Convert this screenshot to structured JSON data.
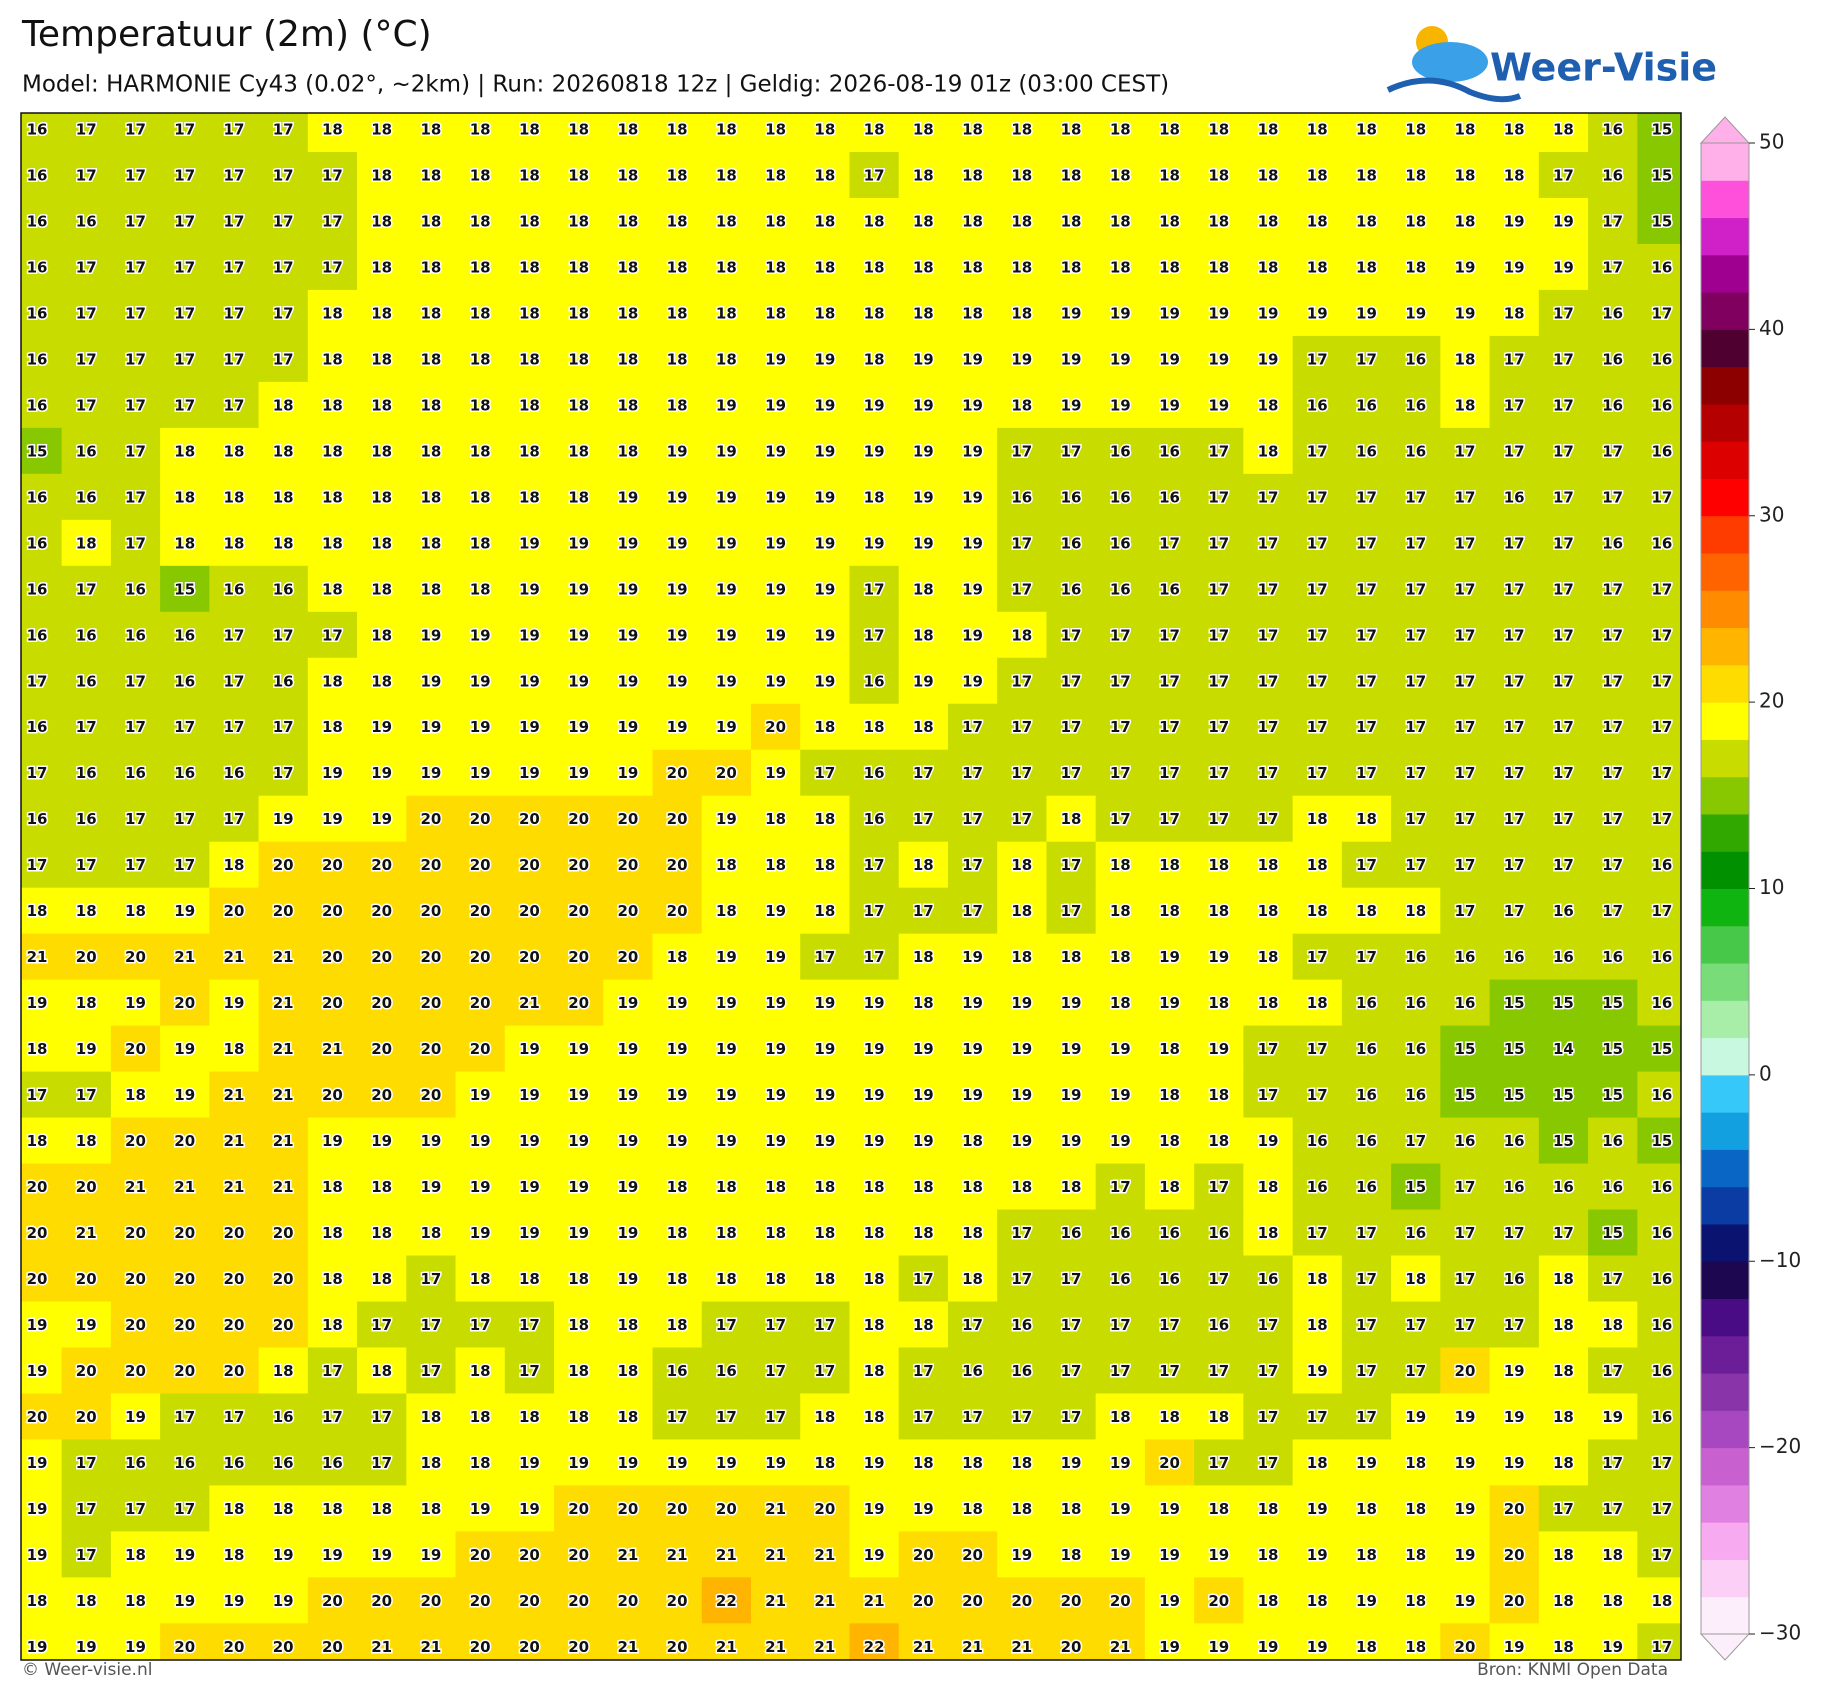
{
  "header": {
    "title": "Temperatuur (2m) (°C)",
    "subtitle": "Model: HARMONIE Cy43 (0.02°, ~2km)  |  Run: 20260818 12z  |  Geldig: 2026-08-19 01z (03:00 CEST)",
    "logo": "Weer-Visie"
  },
  "map": {
    "values": [
      [
        16,
        17,
        17,
        17,
        17,
        17,
        18,
        18,
        18,
        18,
        18,
        18,
        18,
        18,
        18,
        18,
        18,
        18,
        18,
        18,
        18,
        18,
        18,
        18,
        18,
        18,
        18,
        18,
        18,
        18,
        18,
        18,
        16,
        15
      ],
      [
        16,
        17,
        17,
        17,
        17,
        17,
        17,
        18,
        18,
        18,
        18,
        18,
        18,
        18,
        18,
        18,
        18,
        17,
        18,
        18,
        18,
        18,
        18,
        18,
        18,
        18,
        18,
        18,
        18,
        18,
        18,
        17,
        16,
        15
      ],
      [
        16,
        16,
        17,
        17,
        17,
        17,
        17,
        18,
        18,
        18,
        18,
        18,
        18,
        18,
        18,
        18,
        18,
        18,
        18,
        18,
        18,
        18,
        18,
        18,
        18,
        18,
        18,
        18,
        18,
        18,
        19,
        19,
        17,
        15
      ],
      [
        16,
        17,
        17,
        17,
        17,
        17,
        17,
        18,
        18,
        18,
        18,
        18,
        18,
        18,
        18,
        18,
        18,
        18,
        18,
        18,
        18,
        18,
        18,
        18,
        18,
        18,
        18,
        18,
        18,
        19,
        19,
        19,
        17,
        16
      ],
      [
        16,
        17,
        17,
        17,
        17,
        17,
        18,
        18,
        18,
        18,
        18,
        18,
        18,
        18,
        18,
        18,
        18,
        18,
        18,
        18,
        18,
        19,
        19,
        19,
        19,
        19,
        19,
        19,
        19,
        19,
        18,
        17,
        16,
        17
      ],
      [
        16,
        17,
        17,
        17,
        17,
        17,
        18,
        18,
        18,
        18,
        18,
        18,
        18,
        18,
        18,
        19,
        19,
        18,
        19,
        19,
        19,
        19,
        19,
        19,
        19,
        19,
        17,
        17,
        16,
        18,
        17,
        17,
        16,
        16
      ],
      [
        16,
        17,
        17,
        17,
        17,
        18,
        18,
        18,
        18,
        18,
        18,
        18,
        18,
        18,
        19,
        19,
        19,
        19,
        19,
        19,
        18,
        19,
        19,
        19,
        19,
        18,
        16,
        16,
        16,
        18,
        17,
        17,
        16,
        16
      ],
      [
        15,
        16,
        17,
        18,
        18,
        18,
        18,
        18,
        18,
        18,
        18,
        18,
        18,
        19,
        19,
        19,
        19,
        19,
        19,
        19,
        17,
        17,
        16,
        16,
        17,
        18,
        17,
        16,
        16,
        17,
        17,
        17,
        17,
        16
      ],
      [
        16,
        16,
        17,
        18,
        18,
        18,
        18,
        18,
        18,
        18,
        18,
        18,
        19,
        19,
        19,
        19,
        19,
        18,
        19,
        19,
        16,
        16,
        16,
        16,
        17,
        17,
        17,
        17,
        17,
        17,
        16,
        17,
        17,
        17
      ],
      [
        16,
        18,
        17,
        18,
        18,
        18,
        18,
        18,
        18,
        18,
        19,
        19,
        19,
        19,
        19,
        19,
        19,
        19,
        19,
        19,
        17,
        16,
        16,
        17,
        17,
        17,
        17,
        17,
        17,
        17,
        17,
        17,
        16,
        16
      ],
      [
        16,
        17,
        16,
        15,
        16,
        16,
        18,
        18,
        18,
        18,
        19,
        19,
        19,
        19,
        19,
        19,
        19,
        17,
        18,
        19,
        17,
        16,
        16,
        16,
        17,
        17,
        17,
        17,
        17,
        17,
        17,
        17,
        17,
        17
      ],
      [
        16,
        16,
        16,
        16,
        17,
        17,
        17,
        18,
        19,
        19,
        19,
        19,
        19,
        19,
        19,
        19,
        19,
        17,
        18,
        19,
        18,
        17,
        17,
        17,
        17,
        17,
        17,
        17,
        17,
        17,
        17,
        17,
        17,
        17
      ],
      [
        17,
        16,
        17,
        16,
        17,
        16,
        18,
        18,
        19,
        19,
        19,
        19,
        19,
        19,
        19,
        19,
        19,
        16,
        19,
        19,
        17,
        17,
        17,
        17,
        17,
        17,
        17,
        17,
        17,
        17,
        17,
        17,
        17,
        17
      ],
      [
        16,
        17,
        17,
        17,
        17,
        17,
        18,
        19,
        19,
        19,
        19,
        19,
        19,
        19,
        19,
        20,
        18,
        18,
        18,
        17,
        17,
        17,
        17,
        17,
        17,
        17,
        17,
        17,
        17,
        17,
        17,
        17,
        17,
        17
      ],
      [
        17,
        16,
        16,
        16,
        16,
        17,
        19,
        19,
        19,
        19,
        19,
        19,
        19,
        20,
        20,
        19,
        17,
        16,
        17,
        17,
        17,
        17,
        17,
        17,
        17,
        17,
        17,
        17,
        17,
        17,
        17,
        17,
        17,
        17
      ],
      [
        16,
        16,
        17,
        17,
        17,
        19,
        19,
        19,
        20,
        20,
        20,
        20,
        20,
        20,
        19,
        18,
        18,
        16,
        17,
        17,
        17,
        18,
        17,
        17,
        17,
        17,
        18,
        18,
        17,
        17,
        17,
        17,
        17,
        17
      ],
      [
        17,
        17,
        17,
        17,
        18,
        20,
        20,
        20,
        20,
        20,
        20,
        20,
        20,
        20,
        18,
        18,
        18,
        17,
        18,
        17,
        18,
        17,
        18,
        18,
        18,
        18,
        18,
        17,
        17,
        17,
        17,
        17,
        17,
        16
      ],
      [
        18,
        18,
        18,
        19,
        20,
        20,
        20,
        20,
        20,
        20,
        20,
        20,
        20,
        20,
        18,
        19,
        18,
        17,
        17,
        17,
        18,
        17,
        18,
        18,
        18,
        18,
        18,
        18,
        18,
        17,
        17,
        16,
        17,
        17
      ],
      [
        21,
        20,
        20,
        21,
        21,
        21,
        20,
        20,
        20,
        20,
        20,
        20,
        20,
        18,
        19,
        19,
        17,
        17,
        18,
        19,
        18,
        18,
        18,
        19,
        19,
        18,
        17,
        17,
        16,
        16,
        16,
        16,
        16,
        16
      ],
      [
        19,
        18,
        19,
        20,
        19,
        21,
        20,
        20,
        20,
        20,
        21,
        20,
        19,
        19,
        19,
        19,
        19,
        19,
        18,
        19,
        19,
        19,
        18,
        19,
        18,
        18,
        18,
        16,
        16,
        16,
        15,
        15,
        15,
        16
      ],
      [
        18,
        19,
        20,
        19,
        18,
        21,
        21,
        20,
        20,
        20,
        19,
        19,
        19,
        19,
        19,
        19,
        19,
        19,
        19,
        19,
        19,
        19,
        19,
        18,
        19,
        17,
        17,
        16,
        16,
        15,
        15,
        14,
        15,
        15
      ],
      [
        17,
        17,
        18,
        19,
        21,
        21,
        20,
        20,
        20,
        19,
        19,
        19,
        19,
        19,
        19,
        19,
        19,
        19,
        19,
        19,
        19,
        19,
        19,
        18,
        18,
        17,
        17,
        16,
        16,
        15,
        15,
        15,
        15,
        16
      ],
      [
        18,
        18,
        20,
        20,
        21,
        21,
        19,
        19,
        19,
        19,
        19,
        19,
        19,
        19,
        19,
        19,
        19,
        19,
        19,
        18,
        19,
        19,
        19,
        18,
        18,
        19,
        16,
        16,
        17,
        16,
        16,
        15,
        16,
        15
      ],
      [
        20,
        20,
        21,
        21,
        21,
        21,
        18,
        18,
        19,
        19,
        19,
        19,
        19,
        18,
        18,
        18,
        18,
        18,
        18,
        18,
        18,
        18,
        17,
        18,
        17,
        18,
        16,
        16,
        15,
        17,
        16,
        16,
        16,
        16
      ],
      [
        20,
        21,
        20,
        20,
        20,
        20,
        18,
        18,
        18,
        19,
        19,
        19,
        19,
        18,
        18,
        18,
        18,
        18,
        18,
        18,
        17,
        16,
        16,
        16,
        16,
        18,
        17,
        17,
        16,
        17,
        17,
        17,
        15,
        16
      ],
      [
        20,
        20,
        20,
        20,
        20,
        20,
        18,
        18,
        17,
        18,
        18,
        18,
        19,
        18,
        18,
        18,
        18,
        18,
        17,
        18,
        17,
        17,
        16,
        16,
        17,
        16,
        18,
        17,
        18,
        17,
        16,
        18,
        17,
        16
      ],
      [
        19,
        19,
        20,
        20,
        20,
        20,
        18,
        17,
        17,
        17,
        17,
        18,
        18,
        18,
        17,
        17,
        17,
        18,
        18,
        17,
        16,
        17,
        17,
        17,
        16,
        17,
        18,
        17,
        17,
        17,
        17,
        18,
        18,
        16
      ],
      [
        19,
        20,
        20,
        20,
        20,
        18,
        17,
        18,
        17,
        18,
        17,
        18,
        18,
        16,
        16,
        17,
        17,
        18,
        17,
        16,
        16,
        17,
        17,
        17,
        17,
        17,
        19,
        17,
        17,
        20,
        19,
        18,
        17,
        16
      ],
      [
        20,
        20,
        19,
        17,
        17,
        16,
        17,
        17,
        18,
        18,
        18,
        18,
        18,
        17,
        17,
        17,
        18,
        18,
        17,
        17,
        17,
        17,
        18,
        18,
        18,
        17,
        17,
        17,
        19,
        19,
        19,
        18,
        19,
        16
      ],
      [
        19,
        17,
        16,
        16,
        16,
        16,
        16,
        17,
        18,
        18,
        19,
        19,
        19,
        19,
        19,
        19,
        18,
        19,
        18,
        18,
        18,
        19,
        19,
        20,
        17,
        17,
        18,
        19,
        18,
        19,
        19,
        18,
        17,
        17
      ],
      [
        19,
        17,
        17,
        17,
        18,
        18,
        18,
        18,
        18,
        19,
        19,
        20,
        20,
        20,
        20,
        21,
        20,
        19,
        19,
        18,
        18,
        18,
        19,
        19,
        18,
        18,
        19,
        18,
        18,
        19,
        20,
        17,
        17,
        17
      ],
      [
        19,
        17,
        18,
        19,
        18,
        19,
        19,
        19,
        19,
        20,
        20,
        20,
        21,
        21,
        21,
        21,
        21,
        19,
        20,
        20,
        19,
        18,
        19,
        19,
        19,
        18,
        19,
        18,
        18,
        19,
        20,
        18,
        18,
        17
      ],
      [
        18,
        18,
        18,
        19,
        19,
        19,
        20,
        20,
        20,
        20,
        20,
        20,
        20,
        20,
        22,
        21,
        21,
        21,
        20,
        20,
        20,
        20,
        20,
        19,
        20,
        18,
        18,
        19,
        18,
        19,
        20,
        18,
        18,
        18
      ],
      [
        19,
        19,
        19,
        20,
        20,
        20,
        20,
        21,
        21,
        20,
        20,
        20,
        21,
        20,
        21,
        21,
        21,
        22,
        21,
        21,
        21,
        20,
        21,
        19,
        19,
        19,
        19,
        18,
        18,
        20,
        19,
        18,
        19,
        17
      ]
    ]
  },
  "colorbar": {
    "lim": [
      -30,
      50
    ],
    "ticks": [
      50,
      40,
      30,
      20,
      10,
      0,
      {
        "value": -10,
        "label": "−10"
      },
      {
        "value": -20,
        "label": "−20"
      },
      {
        "value": -30,
        "label": "−30"
      }
    ],
    "colors": [
      "#fdeefb",
      "#fcd0f6",
      "#f8aaf0",
      "#e080e0",
      "#c860d0",
      "#a848c0",
      "#8a34aa",
      "#6c1e98",
      "#4a0c84",
      "#1c0750",
      "#0a1470",
      "#0a3ca4",
      "#0a66c4",
      "#12a0e0",
      "#36c8f8",
      "#c8f8e0",
      "#a8eea8",
      "#78dc78",
      "#48c848",
      "#10b410",
      "#009000",
      "#30a800",
      "#88c800",
      "#c8dc00",
      "#ffff00",
      "#ffdc00",
      "#ffb400",
      "#ff8c00",
      "#ff6400",
      "#ff3c00",
      "#ff0000",
      "#dc0000",
      "#b40000",
      "#8c0000",
      "#500030",
      "#800060",
      "#a00090",
      "#d020c8",
      "#ff50dc",
      "#ffb0e8"
    ]
  },
  "footer": {
    "left": "© Weer-visie.nl",
    "right": "Bron: KNMI Open Data"
  }
}
